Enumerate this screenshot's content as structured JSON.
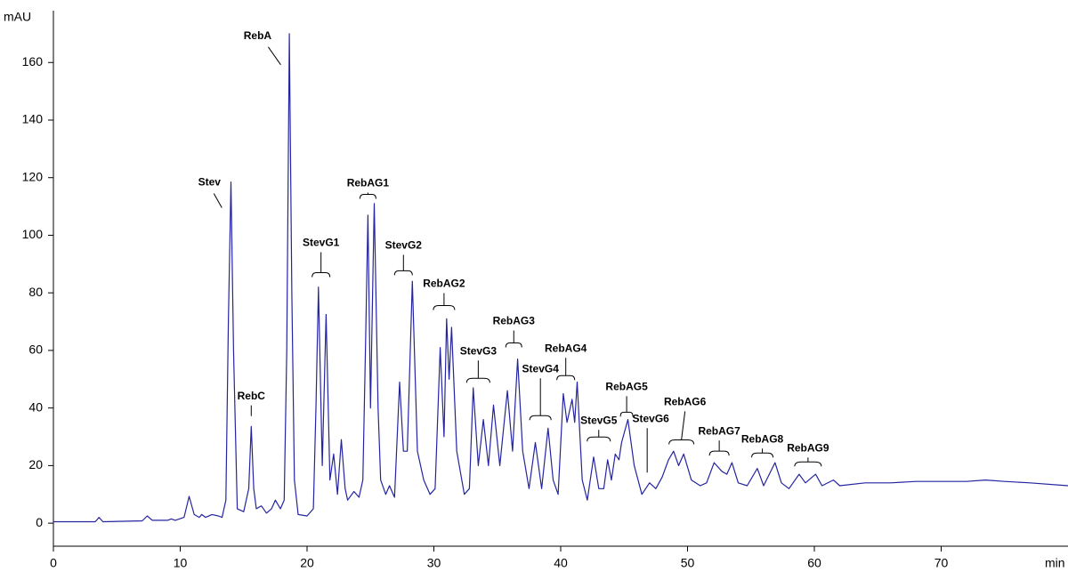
{
  "chart_data": {
    "type": "line",
    "ylabel": "mAU",
    "xlabel": "min",
    "xlim": [
      0,
      80
    ],
    "ylim": [
      -8,
      178
    ],
    "xticks": [
      0,
      10,
      20,
      30,
      40,
      50,
      60,
      70
    ],
    "yticks": [
      0,
      20,
      40,
      60,
      80,
      100,
      120,
      140,
      160
    ],
    "series": [
      {
        "color": "#2424a0",
        "x": [
          0,
          3.3,
          3.6,
          3.9,
          7.0,
          7.4,
          7.8,
          9.0,
          9.3,
          9.6,
          10.3,
          10.7,
          11.1,
          11.5,
          11.7,
          12.0,
          12.5,
          13.0,
          13.3,
          13.6,
          13.8,
          14.0,
          14.2,
          14.5,
          15.0,
          15.4,
          15.6,
          15.8,
          16.0,
          16.4,
          16.8,
          17.2,
          17.5,
          17.9,
          18.2,
          18.4,
          18.6,
          18.8,
          19.0,
          19.3,
          20.0,
          20.5,
          20.7,
          20.9,
          21.1,
          21.2,
          21.5,
          21.8,
          22.1,
          22.4,
          22.7,
          23.0,
          23.2,
          23.7,
          24.1,
          24.4,
          24.6,
          24.8,
          25.0,
          25.3,
          25.6,
          25.8,
          26.2,
          26.5,
          26.9,
          27.3,
          27.6,
          27.9,
          28.3,
          28.7,
          29.2,
          29.7,
          30.1,
          30.5,
          30.8,
          31.0,
          31.2,
          31.4,
          31.8,
          32.4,
          32.8,
          33.1,
          33.5,
          33.9,
          34.3,
          34.7,
          35.2,
          35.8,
          36.2,
          36.6,
          37.0,
          37.5,
          38.0,
          38.5,
          39.0,
          39.4,
          39.8,
          40.2,
          40.5,
          40.9,
          41.1,
          41.3,
          41.7,
          42.1,
          42.6,
          43.0,
          43.4,
          43.7,
          44.0,
          44.3,
          44.6,
          44.8,
          45.3,
          45.8,
          46.4,
          47.0,
          47.5,
          48.0,
          48.5,
          48.9,
          49.3,
          49.7,
          50.3,
          51.0,
          51.5,
          52.1,
          52.7,
          53.1,
          53.5,
          54.0,
          54.7,
          55.5,
          56.0,
          56.9,
          57.4,
          58.0,
          58.8,
          59.3,
          60.1,
          60.6,
          61.5,
          62.0,
          64.0,
          66.0,
          68.0,
          70.0,
          72.0,
          73.5,
          75.0,
          77.0,
          80.0
        ],
        "values": [
          0.5,
          0.5,
          2,
          0.5,
          0.8,
          2.5,
          1,
          1,
          1.5,
          1,
          2,
          9.3,
          3,
          2,
          3,
          2,
          3,
          2.5,
          2,
          8,
          70,
          118.5,
          60,
          5,
          4,
          12,
          33.6,
          12,
          5,
          6,
          3.5,
          5,
          8,
          5,
          8,
          60,
          170,
          80,
          15,
          3,
          2.5,
          5,
          40,
          82,
          40,
          20,
          72.5,
          15,
          24,
          10,
          29,
          12,
          8,
          11,
          9,
          15,
          60,
          107,
          40,
          111,
          40,
          15,
          10,
          13,
          9,
          49,
          25,
          25,
          84,
          25,
          15,
          10,
          12,
          61,
          30,
          71,
          50,
          68,
          25,
          10,
          12,
          47,
          20,
          36,
          20,
          41,
          20,
          46,
          25,
          57,
          25,
          12,
          28,
          12,
          33,
          15,
          10,
          45,
          35,
          43,
          35,
          49,
          15,
          8,
          23,
          12,
          12,
          22,
          15,
          24,
          22,
          28,
          36,
          20,
          10,
          14,
          12,
          16,
          22,
          25,
          20,
          24,
          15,
          13,
          14,
          21,
          18,
          17,
          21,
          14,
          13,
          19,
          13,
          21,
          14,
          12,
          17,
          14,
          17,
          13,
          15,
          13,
          14,
          14,
          14.5,
          14.5,
          14.5,
          15,
          14.5,
          14,
          13
        ]
      }
    ],
    "annotations": [
      {
        "text": "Stev",
        "x": 12.3,
        "y": 118.2
      },
      {
        "text": "RebC",
        "x": 15.6,
        "y": 44.0
      },
      {
        "text": "RebA",
        "x": 16.1,
        "y": 169.1
      },
      {
        "text": "StevG1",
        "x": 21.1,
        "y": 97.2
      },
      {
        "text": "RebAG1",
        "x": 24.8,
        "y": 117.9
      },
      {
        "text": "StevG2",
        "x": 27.6,
        "y": 96.3
      },
      {
        "text": "RebAG2",
        "x": 30.8,
        "y": 83.0
      },
      {
        "text": "RebAG3",
        "x": 36.3,
        "y": 70.0
      },
      {
        "text": "StevG3",
        "x": 33.5,
        "y": 59.6
      },
      {
        "text": "StevG4",
        "x": 38.4,
        "y": 53.4
      },
      {
        "text": "RebAG4",
        "x": 40.4,
        "y": 60.5
      },
      {
        "text": "RebAG5",
        "x": 45.2,
        "y": 47.2
      },
      {
        "text": "StevG5",
        "x": 43.0,
        "y": 35.5
      },
      {
        "text": "StevG6",
        "x": 47.1,
        "y": 36.1
      },
      {
        "text": "RebAG6",
        "x": 49.8,
        "y": 41.9
      },
      {
        "text": "RebAG7",
        "x": 52.5,
        "y": 31.8
      },
      {
        "text": "RebAG8",
        "x": 55.9,
        "y": 29.0
      },
      {
        "text": "RebAG9",
        "x": 59.5,
        "y": 25.9
      }
    ]
  }
}
